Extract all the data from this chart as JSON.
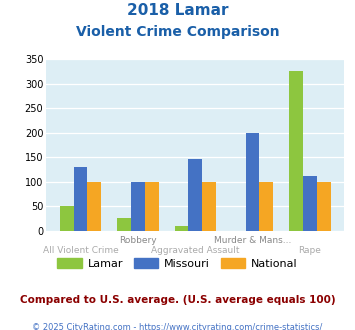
{
  "title_line1": "2018 Lamar",
  "title_line2": "Violent Crime Comparison",
  "row1_labels": [
    "",
    "Robbery",
    "",
    "Murder & Mans...",
    ""
  ],
  "row2_labels": [
    "All Violent Crime",
    "",
    "Aggravated Assault",
    "",
    "Rape"
  ],
  "lamar": [
    50,
    27,
    10,
    0,
    327
  ],
  "missouri": [
    131,
    100,
    147,
    200,
    112
  ],
  "national": [
    100,
    100,
    100,
    100,
    100
  ],
  "lamar_color": "#8dc63f",
  "missouri_color": "#4472c4",
  "national_color": "#f5a623",
  "ylim": [
    0,
    350
  ],
  "yticks": [
    0,
    50,
    100,
    150,
    200,
    250,
    300,
    350
  ],
  "bg_color": "#ddeef5",
  "title_color": "#1a5fa8",
  "subtitle_note": "Compared to U.S. average. (U.S. average equals 100)",
  "footer": "© 2025 CityRating.com - https://www.cityrating.com/crime-statistics/",
  "note_color": "#8b0000",
  "footer_color": "#4472c4",
  "legend_labels": [
    "Lamar",
    "Missouri",
    "National"
  ]
}
